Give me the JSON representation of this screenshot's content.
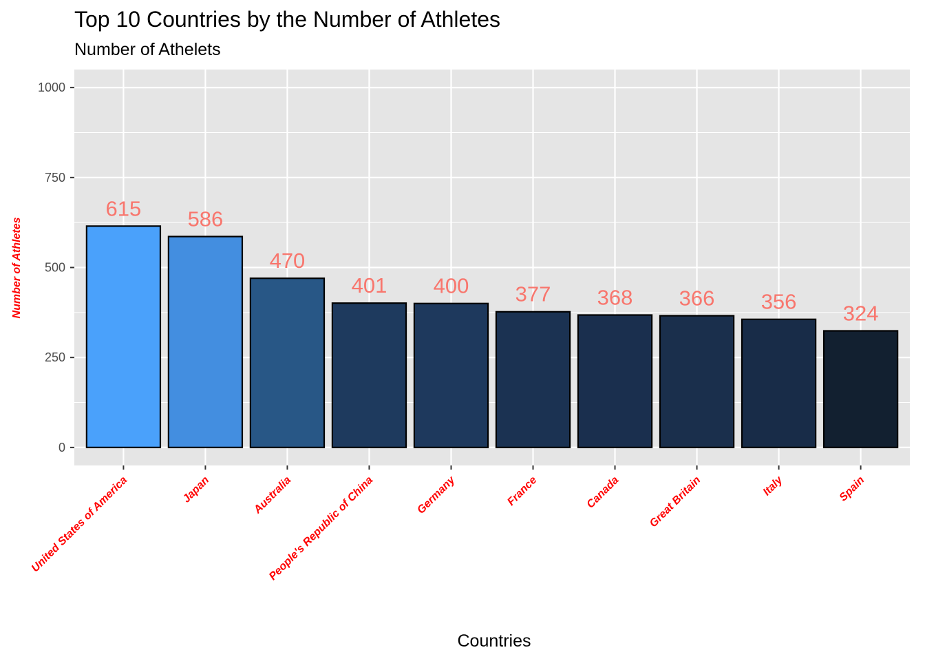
{
  "chart_data": {
    "type": "bar",
    "title": "Top 10 Countries by the Number of Athletes",
    "subtitle": "Number of Athelets",
    "xlabel": "Countries",
    "ylabel": "Number of Athletes",
    "categories": [
      "United States of America",
      "Japan",
      "Australia",
      "People's Republic of China",
      "Germany",
      "France",
      "Canada",
      "Great Britain",
      "Italy",
      "Spain"
    ],
    "values": [
      615,
      586,
      470,
      401,
      400,
      377,
      368,
      366,
      356,
      324
    ],
    "colors": [
      "#4aa1fb",
      "#438ee0",
      "#285786",
      "#1e3a5e",
      "#1e395d",
      "#1b3252",
      "#1a2f4e",
      "#1a2f4c",
      "#182c48",
      "#122030"
    ],
    "bar_label_color": "#f8766d",
    "axis_label_color": "#ff0000",
    "panel_background": "#e5e5e5",
    "yticks": [
      0,
      250,
      500,
      750,
      1000
    ],
    "ylim": [
      -50,
      1050
    ],
    "grid": true,
    "legend": "none"
  }
}
